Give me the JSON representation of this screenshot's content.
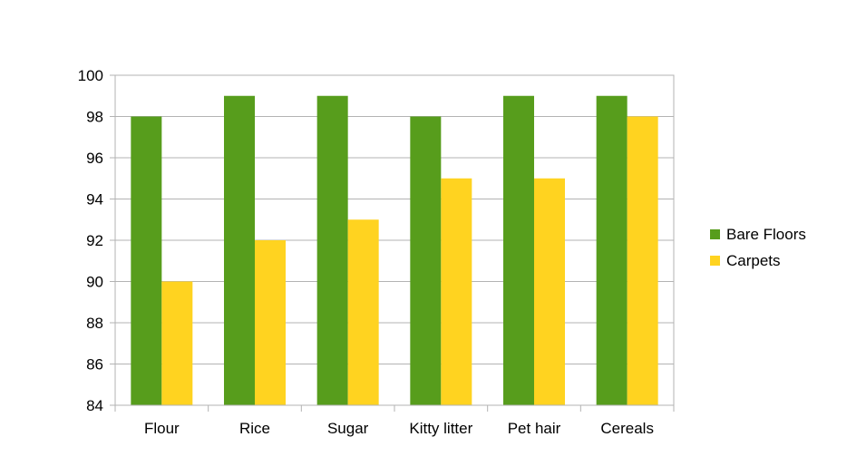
{
  "chart_data": {
    "type": "bar",
    "title": "",
    "xlabel": "",
    "ylabel": "",
    "categories": [
      "Flour",
      "Rice",
      "Sugar",
      "Kitty litter",
      "Pet hair",
      "Cereals"
    ],
    "series": [
      {
        "name": "Bare Floors",
        "color": "#579d1c",
        "values": [
          98,
          99,
          99,
          98,
          99,
          99
        ]
      },
      {
        "name": "Carpets",
        "color": "#ffd320",
        "values": [
          90,
          92,
          93,
          95,
          95,
          98
        ]
      }
    ],
    "ylim": [
      84,
      100
    ],
    "yticks": [
      "84",
      "86",
      "88",
      "90",
      "92",
      "94",
      "96",
      "98",
      "100"
    ],
    "grid": true,
    "legend_position": "right"
  }
}
